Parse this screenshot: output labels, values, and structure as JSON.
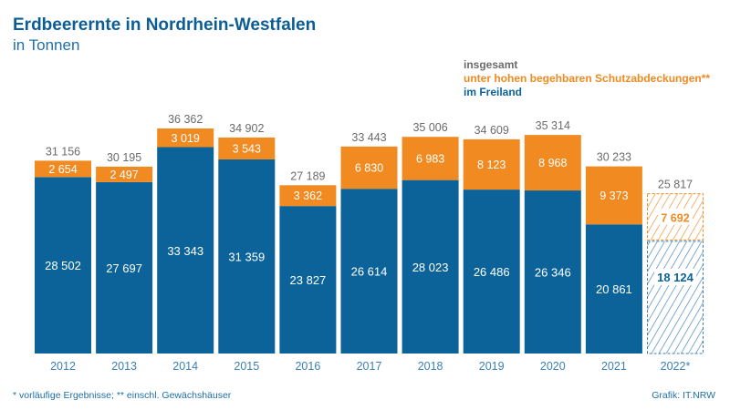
{
  "title": "Erdbeerernte in Nordrhein-Westfalen",
  "subtitle": "in Tonnen",
  "footnote": "*  vorläufige Ergebnisse; **  einschl. Gewächshäuser",
  "source": "Grafik: IT.NRW",
  "colors": {
    "freiland": "#0b6399",
    "schutz": "#f18a21",
    "total": "#6b6b6b",
    "year": "#3c7fb3"
  },
  "chart_data": {
    "type": "bar",
    "stacked": true,
    "title": "Erdbeerernte in Nordrhein-Westfalen",
    "ylabel": "in Tonnen",
    "categories": [
      "2012",
      "2013",
      "2014",
      "2015",
      "2016",
      "2017",
      "2018",
      "2019",
      "2020",
      "2021",
      "2022*"
    ],
    "legend": {
      "position": "top-right",
      "entries": [
        "insgesamt",
        "unter hohen begehbaren Schutzabdeckungen**",
        "im Freiland"
      ]
    },
    "series": [
      {
        "name": "im Freiland",
        "values": [
          28502,
          27697,
          33343,
          31359,
          23827,
          26614,
          28023,
          26486,
          26346,
          20861,
          18124
        ],
        "labels": [
          "28 502",
          "27 697",
          "33 343",
          "31 359",
          "23 827",
          "26 614",
          "28 023",
          "26 486",
          "26 346",
          "20 861",
          "18 124"
        ]
      },
      {
        "name": "unter hohen begehbaren Schutzabdeckungen**",
        "values": [
          2654,
          2497,
          3019,
          3543,
          3362,
          6830,
          6983,
          8123,
          8968,
          9373,
          7692
        ],
        "labels": [
          "2 654",
          "2 497",
          "3 019",
          "3 543",
          "3 362",
          "6 830",
          "6 983",
          "8 123",
          "8 968",
          "9 373",
          "7 692"
        ]
      }
    ],
    "totals": [
      31156,
      30195,
      36362,
      34902,
      27189,
      33443,
      35006,
      34609,
      35314,
      30233,
      25817
    ],
    "total_labels": [
      "31 156",
      "30 195",
      "36 362",
      "34 902",
      "27 189",
      "33 443",
      "35 006",
      "34 609",
      "35 314",
      "30 233",
      "25 817"
    ],
    "provisional": [
      false,
      false,
      false,
      false,
      false,
      false,
      false,
      false,
      false,
      false,
      true
    ],
    "ylim": [
      0,
      40000
    ],
    "grid": false
  }
}
